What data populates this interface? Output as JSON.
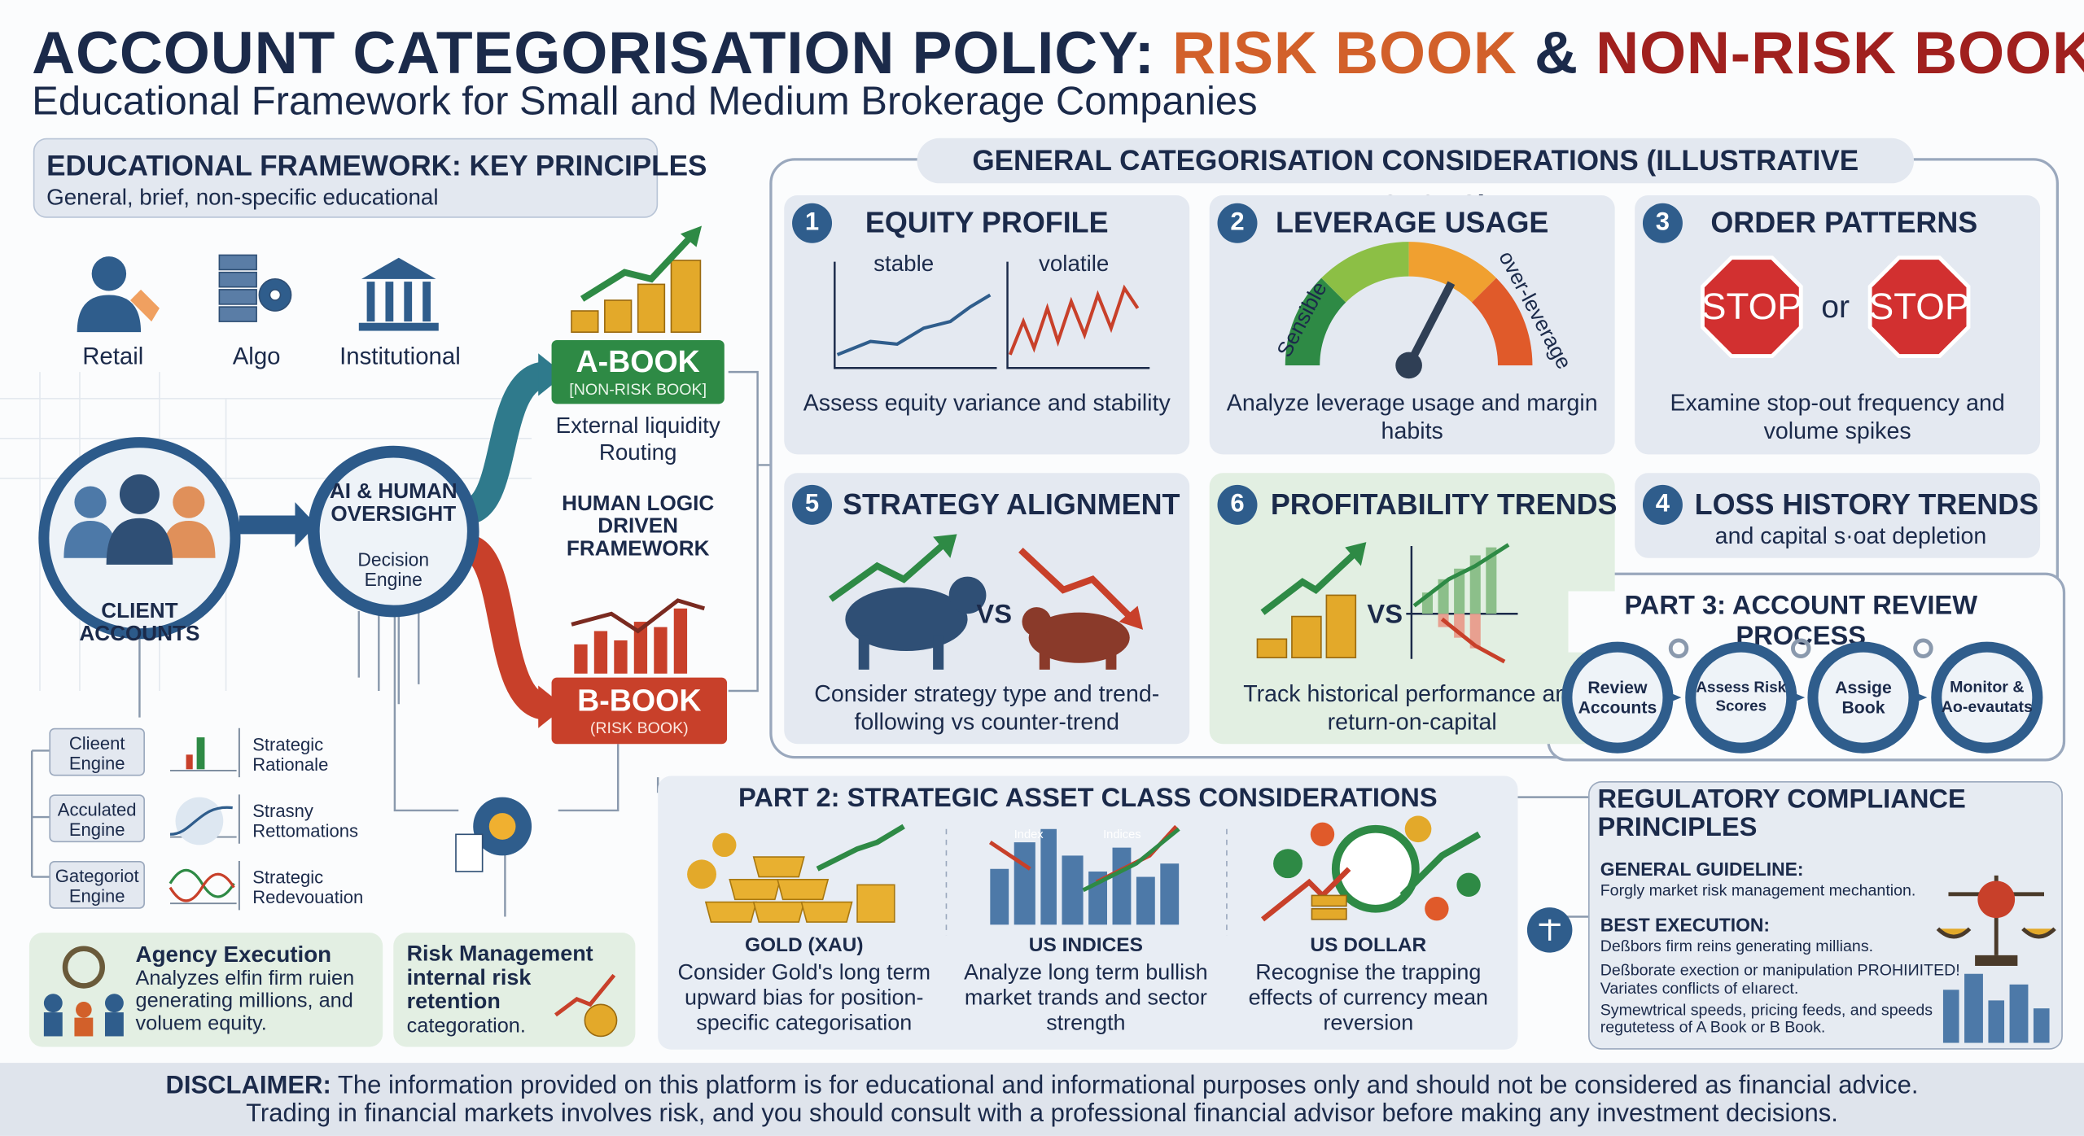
{
  "header": {
    "title_parts": [
      "ACCOUNT CATEGORISATION POLICY:",
      "RISK BOOK",
      "&",
      "NON-RISK BOOK"
    ],
    "subtitle": "Educational Framework for Small and Medium Brokerage Companies"
  },
  "key_principles": {
    "title": "EDUCATIONAL FRAMEWORK: KEY PRINCIPLES",
    "subtitle": "General, brief, non-specific educational"
  },
  "client_types": [
    "Retail",
    "Algo",
    "Institutional"
  ],
  "client_accounts": "CLIENT ACCOUNTS",
  "decision_engine": {
    "title": "AI & HUMAN OVERSIGHT",
    "subtitle": "Decision Engine"
  },
  "a_book": {
    "title": "A-BOOK",
    "subtitle": "[NON-RISK BOOK]",
    "note": "External liquidity Routing"
  },
  "human_logic": "HUMAN LOGIC DRIVEN FRAMEWORK",
  "b_book": {
    "title": "B-BOOK",
    "subtitle": "(RISK BOOK)"
  },
  "engines": [
    {
      "name": "Clieent Engine",
      "desc": "Strategic Rationale"
    },
    {
      "name": "Acculated Engine",
      "desc": "Strasny Rettomations"
    },
    {
      "name": "Gategoriot Engine",
      "desc": "Strategic Redevouation"
    }
  ],
  "agency": {
    "title": "Agency Execution",
    "text": "Analyzes elfin firm ruien generating millions, and voluem equity."
  },
  "risk_management": {
    "title": "Risk Management internal risk retention",
    "text": "categoration."
  },
  "considerations": {
    "title": "GENERAL CATEGORISATION CONSIDERATIONS (ILLUSTRATIVE FACTORS)",
    "factors": [
      {
        "number": "1",
        "title": "EQUITY PROFILE",
        "labels": [
          "stable",
          "volatile"
        ],
        "desc": "Assess equity variance and stability"
      },
      {
        "number": "2",
        "title": "LEVERAGE USAGE",
        "labels": [
          "Sensible",
          "over-leverage"
        ],
        "desc": "Analyze leverage usage and margin habits"
      },
      {
        "number": "3",
        "title": "ORDER PATTERNS",
        "labels": [
          "STOP",
          "or",
          "STOP"
        ],
        "desc": "Examine stop-out frequency and volume spikes"
      },
      {
        "number": "5",
        "title": "STRATEGY ALIGNMENT",
        "labels": [
          "VS"
        ],
        "desc": "Consider strategy type and trend-following vs counter-trend"
      },
      {
        "number": "6",
        "title": "PROFITABILITY TRENDS",
        "labels": [
          "VS"
        ],
        "desc": "Track historical performance and return-on-capital"
      },
      {
        "number": "4",
        "title": "LOSS HISTORY TRENDS",
        "desc": "and capital s·oat depletion"
      }
    ]
  },
  "review_process": {
    "title": "PART 3: ACCOUNT REVIEW PROCESS",
    "steps": [
      "Review Accounts",
      "Assess Risk Scores",
      "Assige Book",
      "Monitor & Ao-evautats"
    ]
  },
  "asset_classes": {
    "title": "PART 2: STRATEGIC ASSET CLASS CONSIDERATIONS",
    "items": [
      {
        "name": "GOLD (XAU)",
        "desc": "Consider Gold's long term upward bias for position-specific categorisation"
      },
      {
        "name": "US INDICES",
        "labels": [
          "Index",
          "Indices"
        ],
        "desc": "Analyze long term bullish market trands and sector strength"
      },
      {
        "name": "US DOLLAR",
        "desc": "Recognise the trapping effects of currency mean reversion"
      }
    ]
  },
  "regulatory": {
    "title": "REGULATORY COMPLIANCE PRINCIPLES",
    "sections": [
      {
        "heading": "GENERAL GUIDELINE:",
        "lines": [
          "Forgly market risk management mechantion."
        ]
      },
      {
        "heading": "BEST EXECUTION:",
        "lines": [
          "Deßbors firm reins generating millians.",
          "Deßborate exection or manipulation PROHIИITED!",
          "Variates conflicts of elıarect.",
          "Symewtrical speeds, pricing feeds, and speeds regutetess of A Book or B Book."
        ]
      }
    ]
  },
  "disclaimer": {
    "label": "DISCLAIMER:",
    "lines": [
      "The information provided on this platform is for educational and informational purposes only and should not be considered as financial advice.",
      "Trading in financial markets involves risk, and you should consult with a professional financial advisor before making any investment decisions."
    ]
  }
}
